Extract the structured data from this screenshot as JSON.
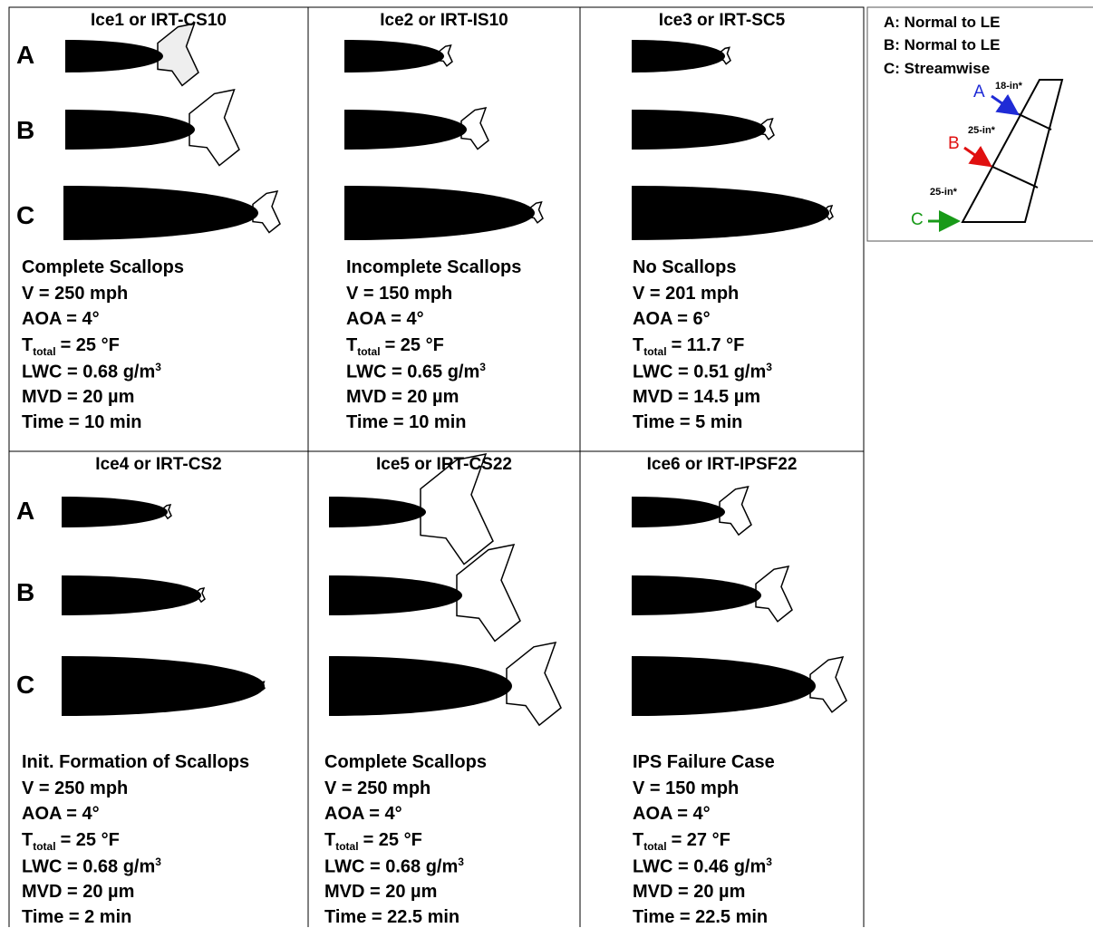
{
  "row_labels": [
    "A",
    "B",
    "C"
  ],
  "panels": [
    {
      "title": "Ice1 or IRT-CS10",
      "case": "Complete Scallops",
      "velocity": "V = 250 mph",
      "aoa": "AOA = 4°",
      "temperature": {
        "symbol": "T",
        "subscript": "total",
        "value": "= 25 °F"
      },
      "lwc": {
        "text": "LWC = 0.68 g/m",
        "superscript": "3"
      },
      "mvd": "MVD = 20 µm",
      "time": "Time = 10 min"
    },
    {
      "title": "Ice2 or IRT-IS10",
      "case": "Incomplete Scallops",
      "velocity": "V = 150 mph",
      "aoa": "AOA = 4°",
      "temperature": {
        "symbol": "T",
        "subscript": "total",
        "value": "= 25 °F"
      },
      "lwc": {
        "text": "LWC = 0.65 g/m",
        "superscript": "3"
      },
      "mvd": "MVD = 20 µm",
      "time": "Time = 10 min"
    },
    {
      "title": "Ice3 or IRT-SC5",
      "case": "No Scallops",
      "velocity": "V = 201 mph",
      "aoa": "AOA = 6°",
      "temperature": {
        "symbol": "T",
        "subscript": "total",
        "value": "= 11.7 °F"
      },
      "lwc": {
        "text": "LWC = 0.51 g/m",
        "superscript": "3"
      },
      "mvd": "MVD = 14.5 µm",
      "time": "Time = 5 min"
    },
    {
      "title": "Ice4 or IRT-CS2",
      "case": "Init. Formation of Scallops",
      "velocity": "V = 250 mph",
      "aoa": "AOA = 4°",
      "temperature": {
        "symbol": "T",
        "subscript": "total",
        "value": "= 25 °F"
      },
      "lwc": {
        "text": "LWC = 0.68 g/m",
        "superscript": "3"
      },
      "mvd": "MVD = 20 µm",
      "time": "Time = 2 min"
    },
    {
      "title": "Ice5 or IRT-CS22",
      "case": "Complete Scallops",
      "velocity": "V = 250 mph",
      "aoa": "AOA = 4°",
      "temperature": {
        "symbol": "T",
        "subscript": "total",
        "value": "= 25 °F"
      },
      "lwc": {
        "text": "LWC = 0.68 g/m",
        "superscript": "3"
      },
      "mvd": "MVD = 20 µm",
      "time": "Time = 22.5 min"
    },
    {
      "title": "Ice6 or IRT-IPSF22",
      "case": "IPS Failure Case",
      "velocity": "V = 150 mph",
      "aoa": "AOA = 4°",
      "temperature": {
        "symbol": "T",
        "subscript": "total",
        "value": "= 27 °F"
      },
      "lwc": {
        "text": "LWC = 0.46 g/m",
        "superscript": "3"
      },
      "mvd": "MVD = 20 µm",
      "time": "Time = 22.5 min"
    }
  ],
  "legend": {
    "lines": [
      "A: Normal to LE",
      "B: Normal to LE",
      "C: Streamwise"
    ],
    "diagram": {
      "arrow_a": "A",
      "arrow_b": "B",
      "arrow_c": "C",
      "span_1": "18-in*",
      "span_2": "25-in*",
      "span_3": "25-in*"
    }
  }
}
